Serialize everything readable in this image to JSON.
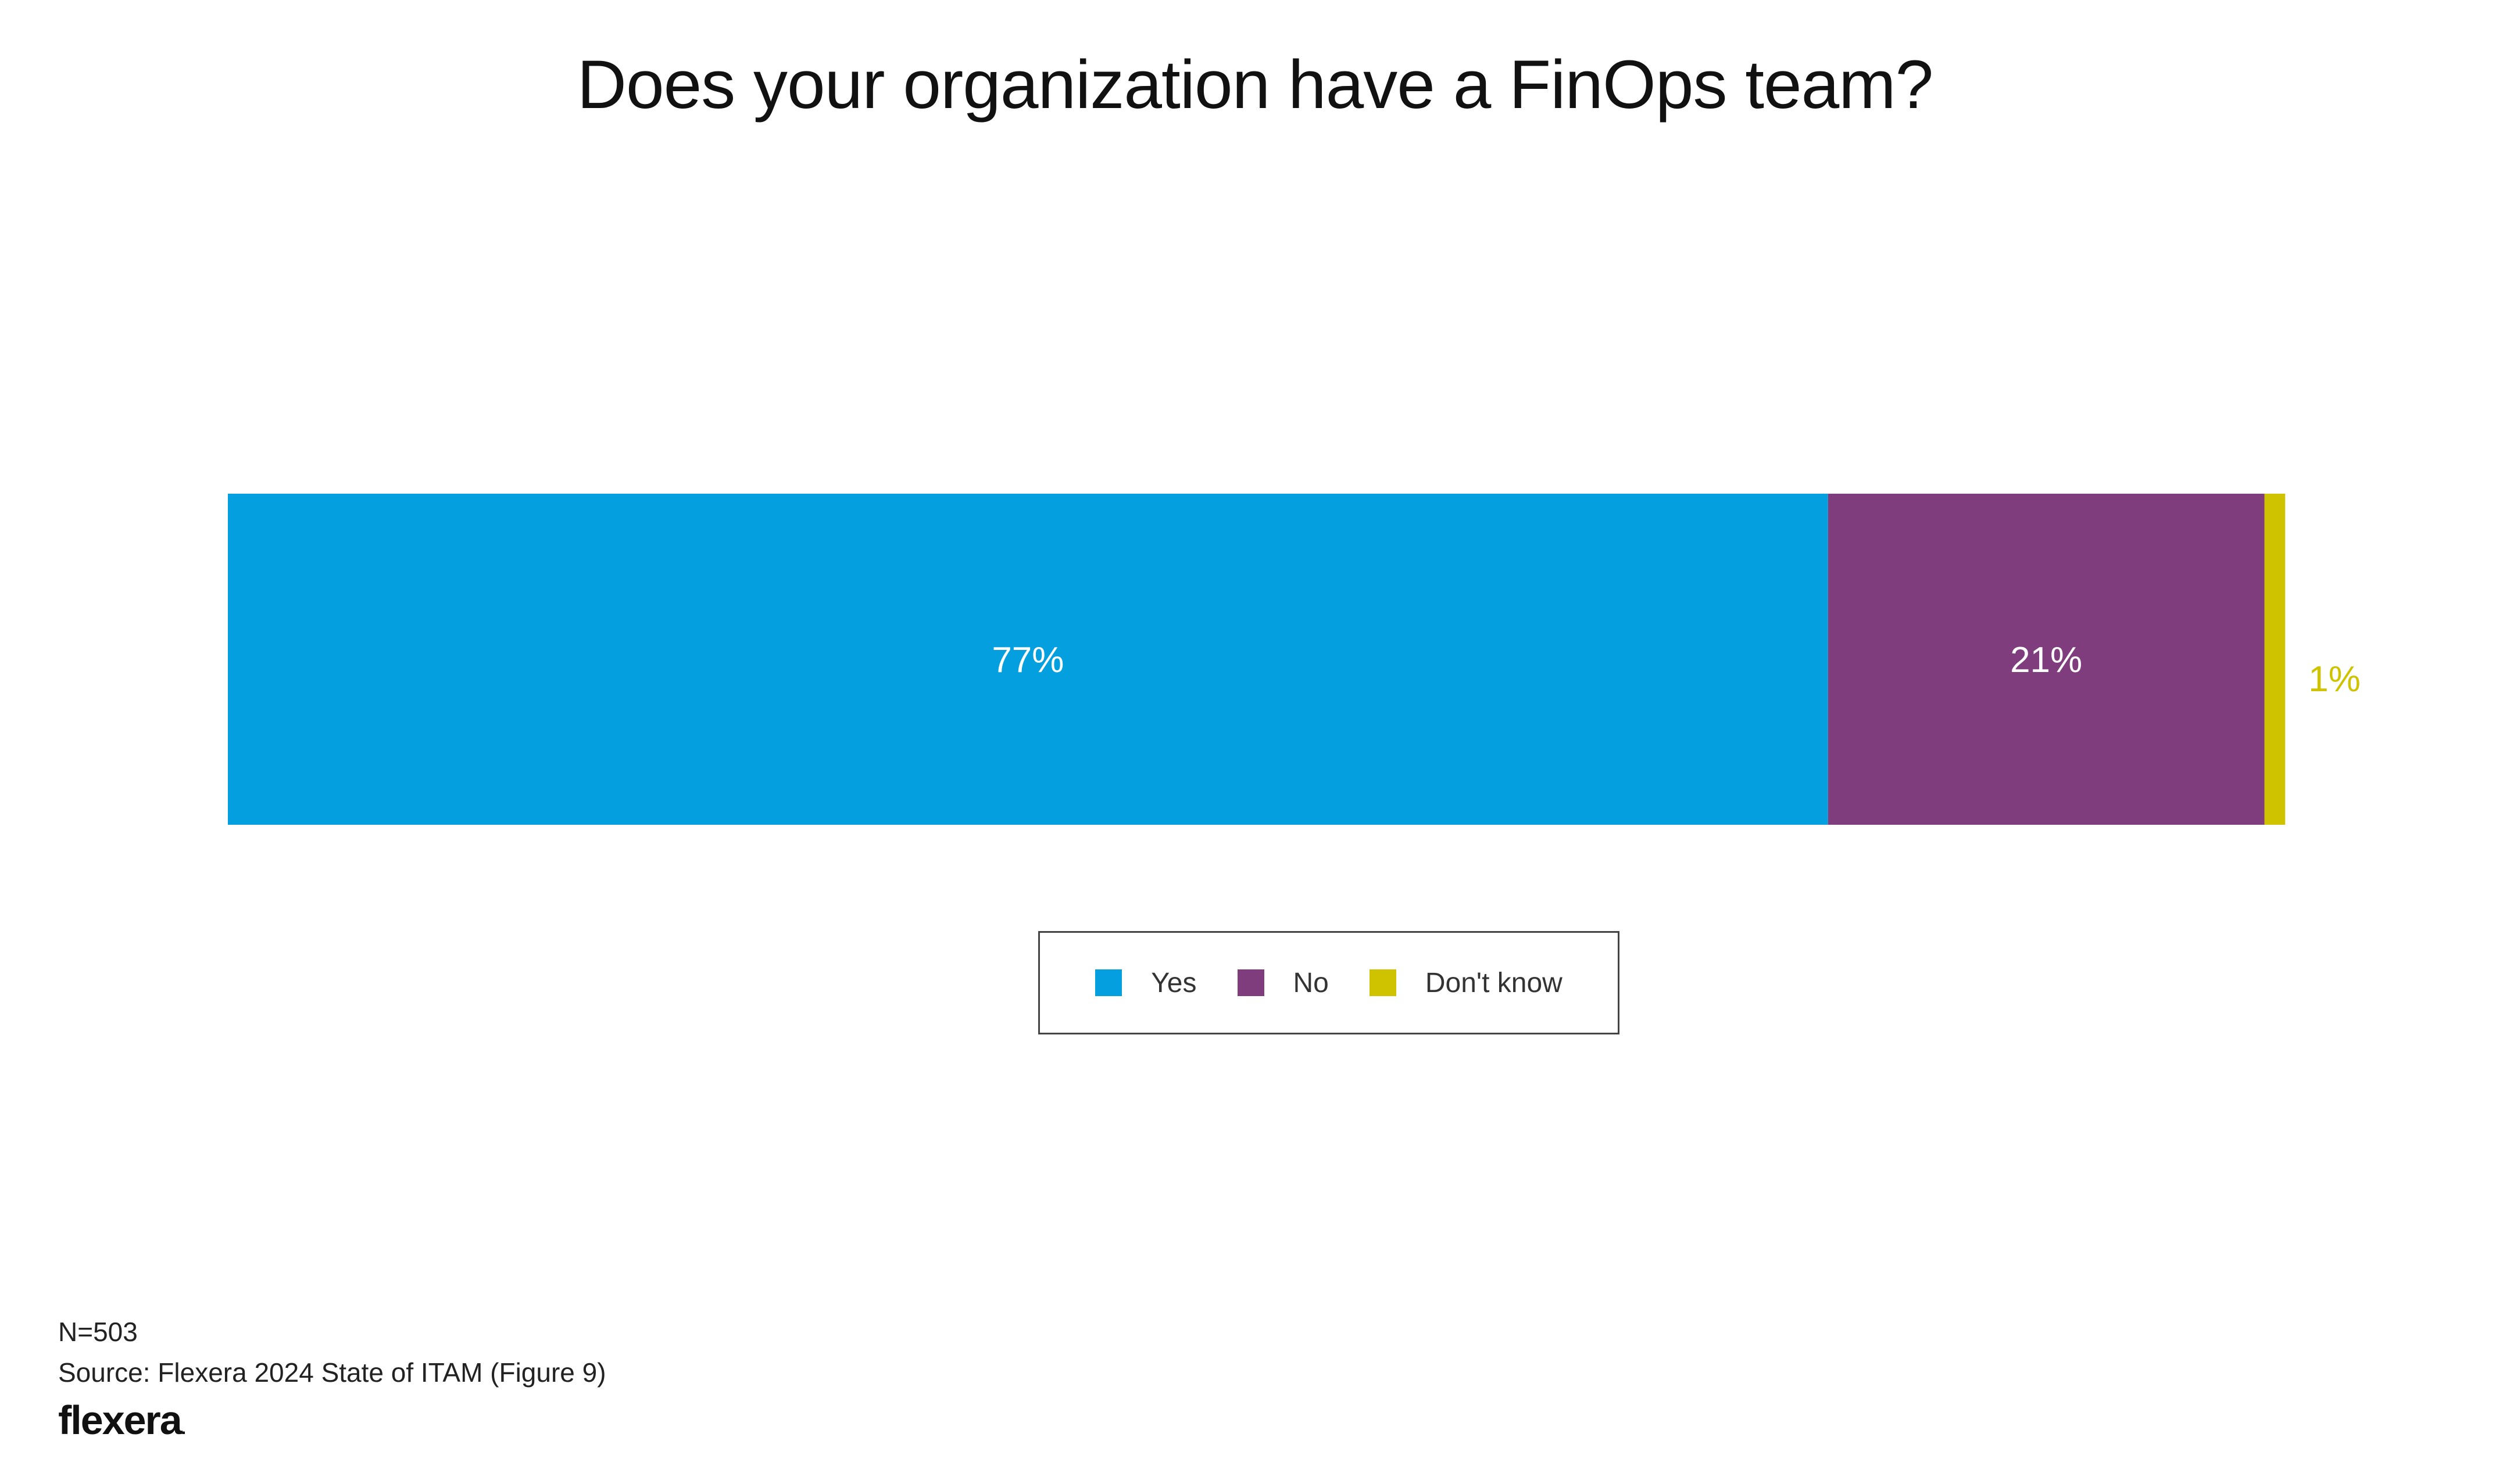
{
  "chart_data": {
    "type": "bar",
    "orientation": "horizontal",
    "stacked": true,
    "title": "Does your organization have a FinOps team?",
    "categories": [
      ""
    ],
    "series": [
      {
        "name": "Yes",
        "values": [
          77
        ],
        "label": "77%",
        "color": "#049FDE"
      },
      {
        "name": "No",
        "values": [
          21
        ],
        "label": "21%",
        "color": "#7F3D7E"
      },
      {
        "name": "Don't know",
        "values": [
          1
        ],
        "label": "1%",
        "color": "#CFC300"
      }
    ],
    "unit": "%",
    "grid": false,
    "legend_position": "bottom-center"
  },
  "footer": {
    "sample_size": "N=503",
    "source": "Source: Flexera 2024 State of ITAM (Figure 9)",
    "logo_text": "flexera"
  }
}
